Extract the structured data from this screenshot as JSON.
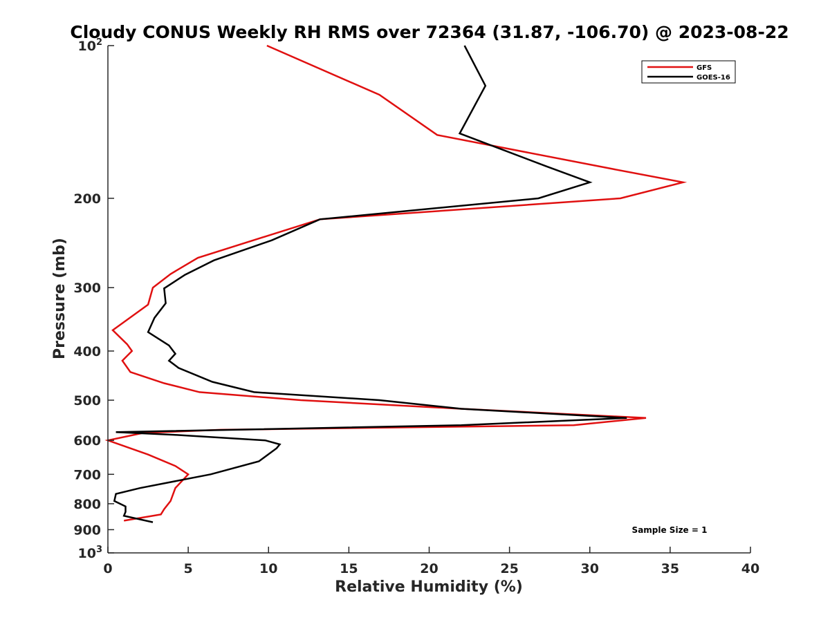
{
  "chart_data": {
    "type": "line",
    "title": "Cloudy CONUS Weekly RH RMS over 72364 (31.87, -106.70) @ 2023-08-22",
    "xlabel": "Relative Humidity (%)",
    "ylabel": "Pressure (mb)",
    "xlim": [
      0,
      40
    ],
    "ylim": [
      100,
      1000
    ],
    "y_scale": "log",
    "y_reversed": true,
    "x_ticks": [
      "0",
      "5",
      "10",
      "15",
      "20",
      "25",
      "30",
      "35",
      "40"
    ],
    "x_tick_values": [
      0,
      5,
      10,
      15,
      20,
      25,
      30,
      35,
      40
    ],
    "y_ticks": [
      {
        "value": 100,
        "base": "10",
        "exp": "2"
      },
      {
        "value": 200,
        "label": "200"
      },
      {
        "value": 300,
        "label": "300"
      },
      {
        "value": 400,
        "label": "400"
      },
      {
        "value": 500,
        "label": "500"
      },
      {
        "value": 600,
        "label": "600"
      },
      {
        "value": 700,
        "label": "700"
      },
      {
        "value": 800,
        "label": "800"
      },
      {
        "value": 900,
        "label": "900"
      },
      {
        "value": 1000,
        "base": "10",
        "exp": "3"
      }
    ],
    "grid": false,
    "legend_position": "top-right",
    "annotation": "Sample Size = 1",
    "series": [
      {
        "name": "GFS",
        "color": "#e01010",
        "points": [
          [
            9.9,
            100
          ],
          [
            16.9,
            125
          ],
          [
            20.5,
            150
          ],
          [
            31.4,
            175
          ],
          [
            35.8,
            186
          ],
          [
            31.9,
            200
          ],
          [
            13.2,
            220
          ],
          [
            5.6,
            262
          ],
          [
            3.9,
            282
          ],
          [
            2.8,
            300
          ],
          [
            2.5,
            324
          ],
          [
            0.3,
            364
          ],
          [
            1.2,
            388
          ],
          [
            1.5,
            400
          ],
          [
            0.9,
            418
          ],
          [
            1.4,
            440
          ],
          [
            3.5,
            463
          ],
          [
            5.7,
            482
          ],
          [
            12.0,
            500
          ],
          [
            22.0,
            520
          ],
          [
            33.5,
            542
          ],
          [
            29.0,
            560
          ],
          [
            7.0,
            572
          ],
          [
            2.2,
            580
          ],
          [
            0.0,
            600
          ],
          [
            2.5,
            640
          ],
          [
            4.2,
            674
          ],
          [
            5.0,
            700
          ],
          [
            4.2,
            745
          ],
          [
            3.9,
            790
          ],
          [
            3.5,
            820
          ],
          [
            3.3,
            840
          ],
          [
            1.0,
            864
          ]
        ]
      },
      {
        "name": "GOES-16",
        "color": "#000000",
        "points": [
          [
            22.2,
            100
          ],
          [
            23.5,
            120
          ],
          [
            21.9,
            149
          ],
          [
            27.3,
            173
          ],
          [
            30.0,
            186
          ],
          [
            26.8,
            200
          ],
          [
            13.2,
            220
          ],
          [
            10.2,
            242
          ],
          [
            6.6,
            265
          ],
          [
            4.8,
            283
          ],
          [
            3.5,
            301
          ],
          [
            3.6,
            322
          ],
          [
            2.9,
            344
          ],
          [
            2.5,
            367
          ],
          [
            3.8,
            390
          ],
          [
            4.2,
            405
          ],
          [
            3.8,
            418
          ],
          [
            4.4,
            432
          ],
          [
            6.5,
            460
          ],
          [
            9.1,
            482
          ],
          [
            16.9,
            500
          ],
          [
            22.0,
            520
          ],
          [
            32.3,
            542
          ],
          [
            22.0,
            560
          ],
          [
            0.5,
            578
          ],
          [
            4.1,
            585
          ],
          [
            9.8,
            600
          ],
          [
            10.7,
            611
          ],
          [
            10.5,
            622
          ],
          [
            9.4,
            660
          ],
          [
            6.4,
            700
          ],
          [
            2.0,
            745
          ],
          [
            0.5,
            765
          ],
          [
            0.4,
            790
          ],
          [
            1.1,
            810
          ],
          [
            1.1,
            830
          ],
          [
            1.0,
            845
          ],
          [
            2.8,
            870
          ]
        ]
      }
    ]
  }
}
